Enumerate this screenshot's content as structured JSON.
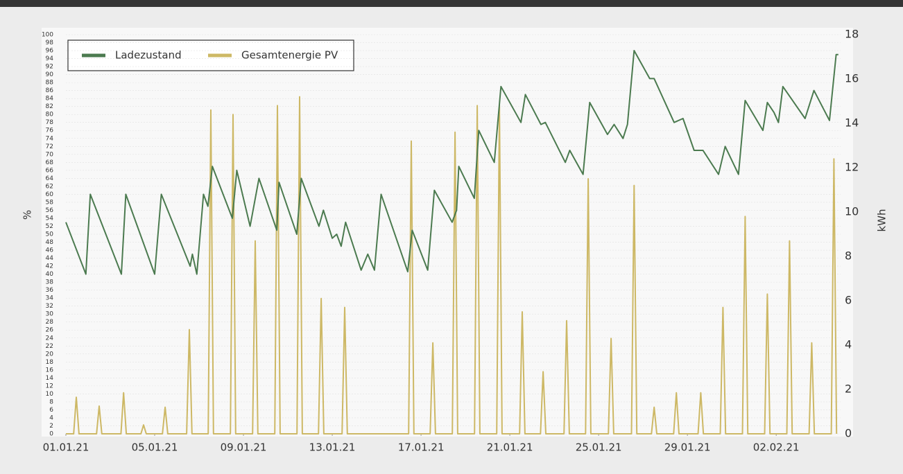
{
  "chart_data": {
    "type": "line",
    "y_label": "%",
    "y2_label": "kWh",
    "xlim": [
      0,
      34.9
    ],
    "xticks": [
      {
        "value": 0,
        "label": "01.01.21"
      },
      {
        "value": 4,
        "label": "05.01.21"
      },
      {
        "value": 8,
        "label": "09.01.21"
      },
      {
        "value": 12,
        "label": "13.01.21"
      },
      {
        "value": 16,
        "label": "17.01.21"
      },
      {
        "value": 20,
        "label": "21.01.21"
      },
      {
        "value": 24,
        "label": "25.01.21"
      },
      {
        "value": 28,
        "label": "29.01.21"
      },
      {
        "value": 32,
        "label": "02.02.21"
      }
    ],
    "ylim": [
      0,
      100
    ],
    "yticks": [
      0,
      2,
      4,
      6,
      8,
      10,
      12,
      14,
      16,
      18,
      20,
      22,
      24,
      26,
      28,
      30,
      32,
      34,
      36,
      38,
      40,
      42,
      44,
      46,
      48,
      50,
      52,
      54,
      56,
      58,
      60,
      62,
      64,
      66,
      68,
      70,
      72,
      74,
      76,
      78,
      80,
      82,
      84,
      86,
      88,
      90,
      92,
      94,
      96,
      98,
      100
    ],
    "y2lim": [
      0,
      18
    ],
    "y2ticks": [
      0,
      2,
      4,
      6,
      8,
      10,
      12,
      14,
      16,
      18
    ],
    "grid": true,
    "legend": "top-left",
    "series": [
      {
        "name": "Ladezustand",
        "color": "#4b7a4f",
        "x": [
          0,
          0.9,
          1.1,
          2.5,
          2.7,
          4,
          4.3,
          5.6,
          5.7,
          5.9,
          6.2,
          6.4,
          6.6,
          7.5,
          7.7,
          8.3,
          8.7,
          9.5,
          9.6,
          10.4,
          10.6,
          11.4,
          11.6,
          12,
          12.2,
          12.4,
          12.6,
          13.3,
          13.6,
          13.9,
          14.2,
          15.4,
          15.6,
          16.3,
          16.6,
          17.4,
          17.6,
          17.7,
          18.4,
          18.6,
          19.3,
          19.6,
          20.5,
          20.7,
          21.4,
          21.6,
          22.5,
          22.7,
          22.9,
          23.3,
          23.6,
          24.4,
          24.7,
          25.1,
          25.3,
          25.6,
          26.3,
          26.5,
          27.4,
          27.8,
          28.3,
          28.7,
          29.4,
          29.7,
          30.3,
          30.6,
          31.4,
          31.6,
          31.9,
          32.1,
          32.3,
          33.3,
          33.7,
          34.4,
          34.7,
          34.8
        ],
        "values": [
          53,
          40,
          60,
          40,
          60,
          40,
          60,
          42,
          45,
          40,
          60,
          57,
          67,
          54,
          66,
          52,
          64,
          51,
          63,
          50,
          64,
          52,
          56,
          49,
          50,
          47,
          53,
          41,
          45,
          41,
          60,
          40.6,
          51,
          41,
          61,
          53,
          56,
          67,
          59,
          76,
          68,
          87,
          78,
          85,
          77.5,
          78,
          68,
          71,
          69,
          65,
          83,
          75,
          77.5,
          74,
          77.5,
          96,
          89,
          89,
          78,
          79,
          71,
          71,
          65,
          72,
          65,
          83.5,
          76,
          83,
          80.5,
          78,
          87,
          79,
          86,
          78.5,
          95,
          95
        ]
      },
      {
        "name": "Gesamtenergie PV",
        "color": "#cdb865",
        "axis": "y2",
        "x": [
          0,
          0.35,
          0.47,
          0.59,
          1.38,
          1.5,
          1.62,
          2.48,
          2.6,
          2.72,
          3.38,
          3.5,
          3.62,
          4.35,
          4.47,
          4.59,
          5.44,
          5.56,
          5.68,
          6.41,
          6.53,
          6.65,
          7.41,
          7.53,
          7.65,
          8.41,
          8.53,
          8.65,
          9.41,
          9.53,
          9.65,
          10.41,
          10.53,
          10.65,
          11.38,
          11.5,
          11.62,
          12.44,
          12.56,
          12.68,
          15.44,
          15.56,
          15.68,
          16.41,
          16.53,
          16.65,
          17.41,
          17.53,
          17.65,
          18.41,
          18.53,
          18.65,
          19.41,
          19.53,
          19.65,
          20.44,
          20.56,
          20.68,
          21.38,
          21.5,
          21.62,
          22.44,
          22.56,
          22.68,
          23.41,
          23.53,
          23.65,
          24.44,
          24.56,
          24.68,
          25.48,
          25.6,
          25.72,
          26.38,
          26.5,
          26.62,
          27.38,
          27.5,
          27.62,
          28.48,
          28.6,
          28.72,
          29.48,
          29.6,
          29.72,
          30.48,
          30.6,
          30.72,
          31.48,
          31.6,
          31.72,
          32.48,
          32.6,
          32.72,
          33.48,
          33.6,
          33.72,
          34.48,
          34.6,
          34.72
        ],
        "values": [
          0,
          0,
          1.65,
          0,
          0,
          1.25,
          0,
          0,
          1.85,
          0,
          0,
          0.4,
          0,
          0,
          1.2,
          0,
          0,
          4.7,
          0,
          0,
          14.6,
          0,
          0,
          14.4,
          0,
          0,
          8.7,
          0,
          0,
          14.8,
          0,
          0,
          15.2,
          0,
          0,
          6.1,
          0,
          0,
          5.7,
          0,
          0,
          13.2,
          0,
          0,
          4.1,
          0,
          0,
          13.6,
          0,
          0,
          14.8,
          0,
          0,
          14.8,
          0,
          0,
          5.5,
          0,
          0,
          2.8,
          0,
          0,
          5.1,
          0,
          0,
          11.5,
          0,
          0,
          4.3,
          0,
          0,
          11.2,
          0,
          0,
          1.2,
          0,
          0,
          1.85,
          0,
          0,
          1.85,
          0,
          0,
          5.7,
          0,
          0,
          9.8,
          0,
          0,
          6.3,
          0,
          0,
          8.7,
          0,
          0,
          4.1,
          0,
          0,
          12.4,
          0
        ]
      }
    ]
  }
}
